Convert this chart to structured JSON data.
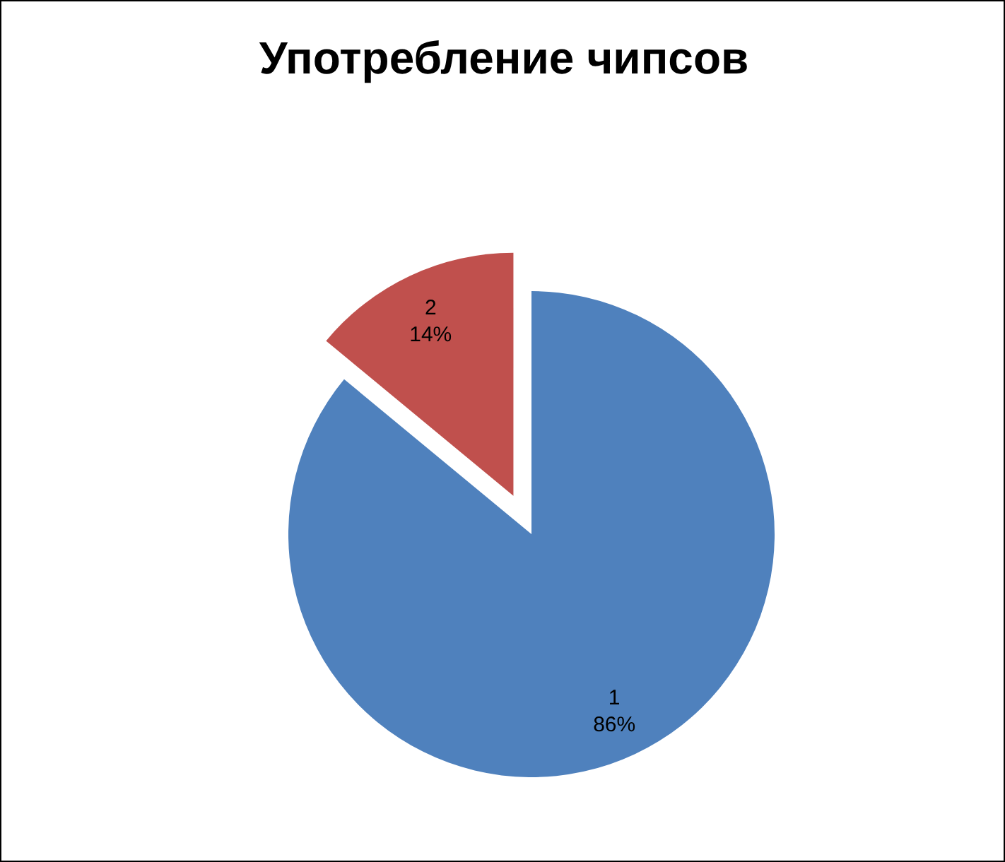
{
  "chart_data": {
    "type": "pie",
    "title": "Употребление чипсов",
    "categories": [
      "1",
      "2"
    ],
    "values": [
      86,
      14
    ],
    "colors": [
      "#4f81bd",
      "#c0504d"
    ],
    "value_labels": [
      "86%",
      "14%"
    ],
    "legend": false
  }
}
